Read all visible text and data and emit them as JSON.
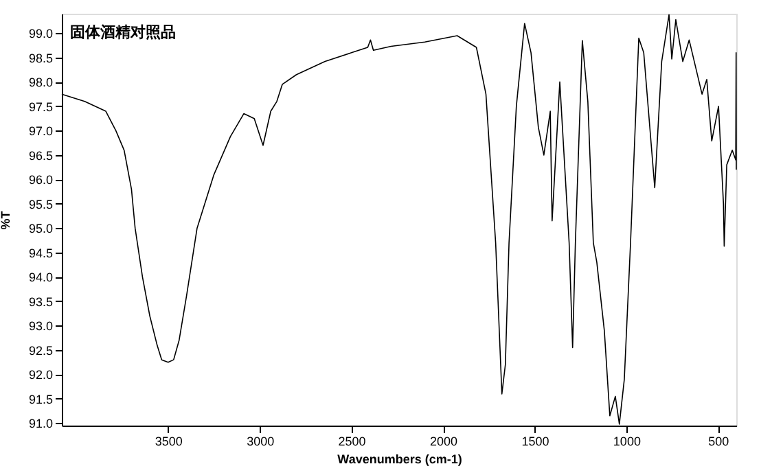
{
  "chart_data": {
    "type": "line",
    "xlabel": "Wavenumbers (cm-1)",
    "ylabel": "%T",
    "annotations": [
      "固体酒精对照品"
    ],
    "xlim": [
      4080,
      400
    ],
    "ylim": [
      90.95,
      99.4
    ],
    "xticks": [
      3500,
      3000,
      2500,
      2000,
      1500,
      1000,
      500
    ],
    "yticks": [
      {
        "value": 91,
        "label": "91.0"
      },
      91.5,
      {
        "value": 92,
        "label": "92.0"
      },
      92.5,
      {
        "value": 93,
        "label": "93.0"
      },
      93.5,
      {
        "value": 94,
        "label": "94.0"
      },
      94.5,
      {
        "value": 95,
        "label": "95.0"
      },
      95.5,
      {
        "value": 96,
        "label": "96.0"
      },
      96.5,
      {
        "value": 97,
        "label": "97.0"
      },
      97.5,
      {
        "value": 98,
        "label": "98.0"
      },
      98.5,
      {
        "value": 99,
        "label": "99.0"
      }
    ],
    "grid": false,
    "marker": "none",
    "line_style": "solid",
    "x": [
      4080,
      3955,
      3840,
      3785,
      3740,
      3700,
      3680,
      3640,
      3600,
      3560,
      3535,
      3500,
      3470,
      3440,
      3400,
      3342,
      3250,
      3160,
      3087,
      3030,
      2982,
      2940,
      2907,
      2877,
      2800,
      2644,
      2500,
      2411,
      2396,
      2380,
      2284,
      2100,
      1923,
      1818,
      1766,
      1713,
      1679,
      1660,
      1640,
      1600,
      1555,
      1520,
      1480,
      1450,
      1415,
      1405,
      1363,
      1312,
      1293,
      1278,
      1240,
      1210,
      1180,
      1161,
      1120,
      1090,
      1060,
      1038,
      1011,
      977,
      932,
      905,
      845,
      807,
      767,
      752,
      730,
      692,
      657,
      587,
      561,
      534,
      497,
      470,
      466,
      452,
      422,
      403,
      401,
      400
    ],
    "series": [
      {
        "color": "#000000",
        "values": [
          97.75,
          97.6,
          97.4,
          97.0,
          96.6,
          95.8,
          95.0,
          94.0,
          93.2,
          92.6,
          92.3,
          92.25,
          92.3,
          92.7,
          93.6,
          95.0,
          96.1,
          96.88,
          97.35,
          97.25,
          96.7,
          97.4,
          97.6,
          97.95,
          98.15,
          98.42,
          98.6,
          98.71,
          98.86,
          98.65,
          98.73,
          98.82,
          98.95,
          98.71,
          97.75,
          94.7,
          91.6,
          92.2,
          94.7,
          97.5,
          99.2,
          98.6,
          97.07,
          96.5,
          97.4,
          95.15,
          98.0,
          94.7,
          92.55,
          94.7,
          98.85,
          97.6,
          94.7,
          94.3,
          92.9,
          91.15,
          91.55,
          90.98,
          91.9,
          94.7,
          98.9,
          98.6,
          95.83,
          98.42,
          99.38,
          98.47,
          99.28,
          98.42,
          98.86,
          97.75,
          98.05,
          96.79,
          97.5,
          95.5,
          94.63,
          96.3,
          96.6,
          96.4,
          98.6,
          96.2
        ]
      }
    ]
  }
}
